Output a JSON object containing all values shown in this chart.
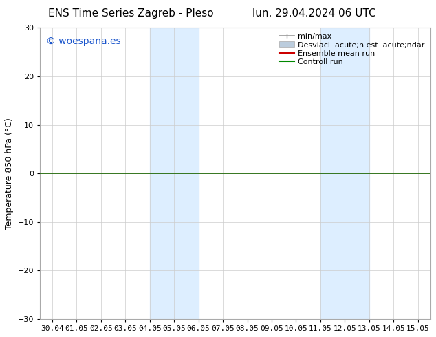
{
  "title_left": "ENS Time Series Zagreb - Pleso",
  "title_right": "lun. 29.04.2024 06 UTC",
  "ylabel": "Temperature 850 hPa (°C)",
  "xlim_dates": [
    "30.04",
    "01.05",
    "02.05",
    "03.05",
    "04.05",
    "05.05",
    "06.05",
    "07.05",
    "08.05",
    "09.05",
    "10.05",
    "11.05",
    "12.05",
    "13.05",
    "14.05",
    "15.05"
  ],
  "ylim": [
    -30,
    30
  ],
  "yticks": [
    -30,
    -20,
    -10,
    0,
    10,
    20,
    30
  ],
  "background_color": "#ffffff",
  "plot_bg_color": "#ffffff",
  "shaded_regions": [
    {
      "xstart": 4.0,
      "xend": 6.0,
      "color": "#ddeeff"
    },
    {
      "xstart": 11.0,
      "xend": 13.0,
      "color": "#ddeeff"
    }
  ],
  "hline_y": 0,
  "hline_color": "#1a6600",
  "hline_linewidth": 1.2,
  "watermark_text": "© woespana.es",
  "watermark_color": "#1a55cc",
  "legend_labels": [
    "min/max",
    "Desviaci  acute;n est  acute;ndar",
    "Ensemble mean run",
    "Controll run"
  ],
  "legend_colors_line": [
    "#999999",
    "#bbccdd",
    "#cc0000",
    "#008800"
  ],
  "title_fontsize": 11,
  "label_fontsize": 9,
  "tick_fontsize": 8,
  "watermark_fontsize": 10,
  "legend_fontsize": 8
}
